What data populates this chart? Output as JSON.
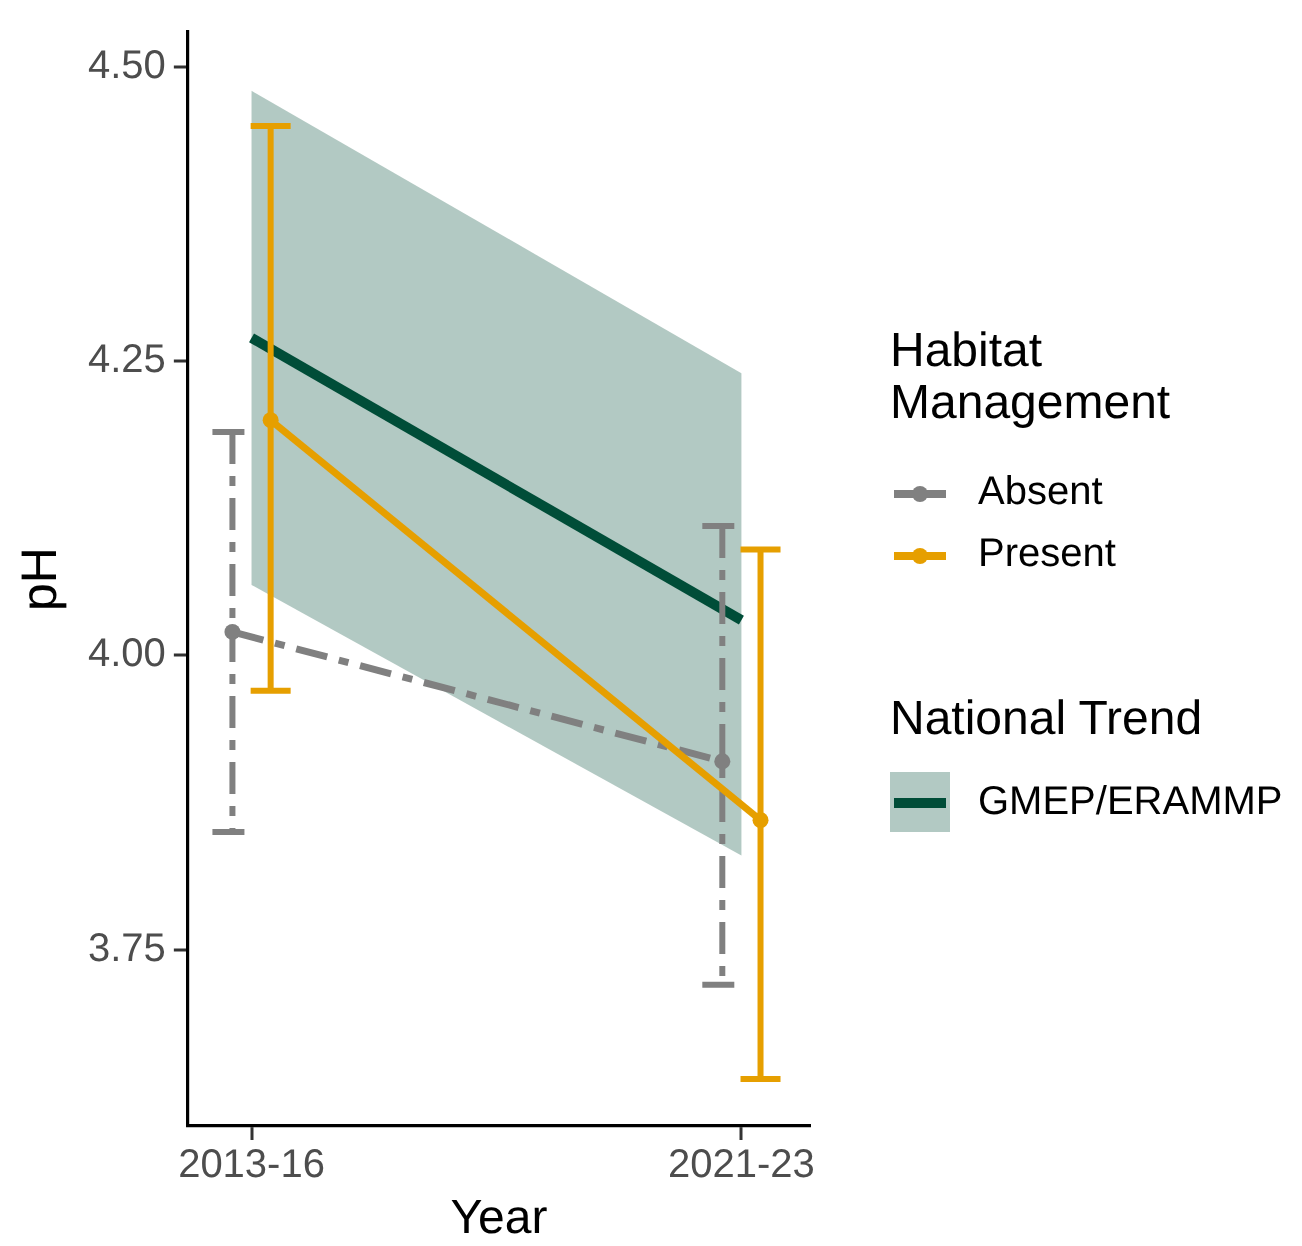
{
  "chart_data": {
    "type": "line",
    "xlabel": "Year",
    "ylabel": "pH",
    "legend_title": "Habitat Management",
    "categories": [
      "2013-16",
      "2021-23"
    ],
    "series": [
      {
        "name": "Absent",
        "color": "#808080",
        "values": [
          4.02,
          3.91
        ],
        "errors": [
          [
            3.85,
            4.19
          ],
          [
            3.72,
            4.11
          ]
        ],
        "line_style": "dashed"
      },
      {
        "name": "Present",
        "color": "#e69f00",
        "values": [
          4.2,
          3.86
        ],
        "errors": [
          [
            3.97,
            4.45
          ],
          [
            3.64,
            4.09
          ]
        ]
      },
      {
        "name": "GMEP/ERAMMP",
        "color": "#004d38",
        "values": [
          4.27,
          4.03
        ],
        "lower": [
          4.06,
          3.83
        ],
        "upper": [
          4.48,
          4.24
        ],
        "marker": "none"
      }
    ],
    "ylim": [
      3.6,
      4.53
    ],
    "yticks": [
      {
        "value": 3.75,
        "label": "3.75"
      },
      {
        "value": 4,
        "label": "4.00"
      },
      {
        "value": 4.25,
        "label": "4.25"
      },
      {
        "value": 4.5,
        "label": "4.50"
      }
    ],
    "marker": "circle",
    "legend": "right",
    "annotations": [
      "National Trend"
    ]
  }
}
